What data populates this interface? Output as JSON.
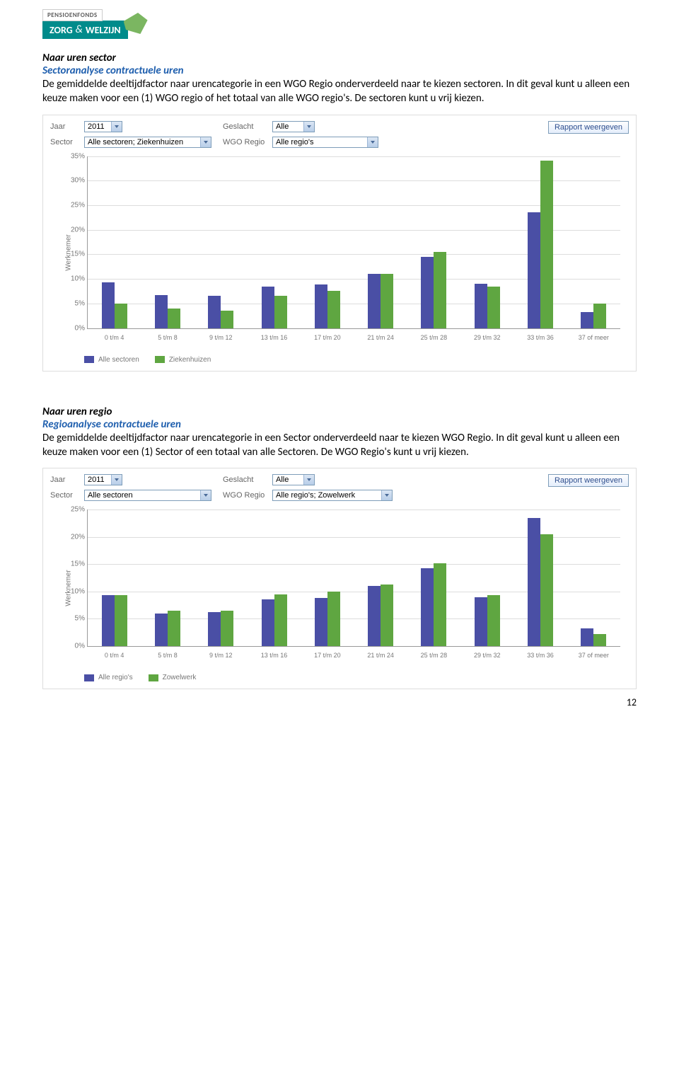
{
  "logo": {
    "top": "PENSIOENFONDS",
    "name_a": "ZORG",
    "amp": "&",
    "name_b": "WELZIJN",
    "bg": "#008b8b",
    "accent": "#7bb661"
  },
  "section1": {
    "heading": "Naar uren sector",
    "subheading": "Sectoranalyse contractuele uren",
    "para": "De gemiddelde deeltijdfactor naar urencategorie in een WGO Regio onderverdeeld naar te kiezen sectoren. In dit geval kunt u alleen een keuze maken voor een (1) WGO regio of het totaal van alle WGO regio's. De sectoren kunt u vrij kiezen."
  },
  "section2": {
    "heading": "Naar uren regio",
    "subheading": "Regioanalyse contractuele uren",
    "para": "De gemiddelde deeltijdfactor naar urencategorie in een Sector onderverdeeld naar te kiezen WGO Regio. In dit geval kunt u alleen een keuze maken voor een (1) Sector of een totaal van alle Sectoren. De WGO Regio's kunt u vrij kiezen."
  },
  "filters": {
    "jaar_label": "Jaar",
    "geslacht_label": "Geslacht",
    "sector_label": "Sector",
    "wgo_label": "WGO Regio",
    "jaar_value": "2011",
    "geslacht_value": "Alle",
    "button": "Rapport weergeven"
  },
  "chart1": {
    "filter_sector": "Alle sectoren; Ziekenhuizen",
    "filter_wgo": "Alle regio's",
    "y_label": "Werknemer",
    "y_max": 35,
    "y_ticks": [
      0,
      5,
      10,
      15,
      20,
      25,
      30,
      35
    ],
    "categories": [
      "0 t/m 4",
      "5 t/m 8",
      "9 t/m 12",
      "13 t/m 16",
      "17 t/m 20",
      "21 t/m 24",
      "25 t/m 28",
      "29 t/m 32",
      "33 t/m 36",
      "37 of meer"
    ],
    "series": [
      {
        "name": "Alle sectoren",
        "color": "#4a4fa5",
        "values": [
          9.3,
          6.7,
          6.5,
          8.5,
          8.8,
          11,
          14.5,
          9,
          23.5,
          3.2
        ]
      },
      {
        "name": "Ziekenhuizen",
        "color": "#5fa641",
        "values": [
          5,
          4,
          3.5,
          6.5,
          7.5,
          11,
          15.5,
          8.5,
          34,
          5
        ]
      }
    ]
  },
  "chart2": {
    "filter_sector": "Alle sectoren",
    "filter_wgo": "Alle regio's; Zowelwerk",
    "y_label": "Werknemer",
    "y_max": 25,
    "y_ticks": [
      0,
      5,
      10,
      15,
      20,
      25
    ],
    "categories": [
      "0 t/m 4",
      "5 t/m 8",
      "9 t/m 12",
      "13 t/m 16",
      "17 t/m 20",
      "21 t/m 24",
      "25 t/m 28",
      "29 t/m 32",
      "33 t/m 36",
      "37 of meer"
    ],
    "series": [
      {
        "name": "Alle regio's",
        "color": "#4a4fa5",
        "values": [
          9.3,
          6,
          6.2,
          8.5,
          8.8,
          11,
          14.3,
          9,
          23.5,
          3.2
        ]
      },
      {
        "name": "Zowelwerk",
        "color": "#5fa641",
        "values": [
          9.3,
          6.5,
          6.5,
          9.5,
          10,
          11.3,
          15.2,
          9.3,
          20.5,
          2.2
        ]
      }
    ]
  },
  "page_number": "12"
}
